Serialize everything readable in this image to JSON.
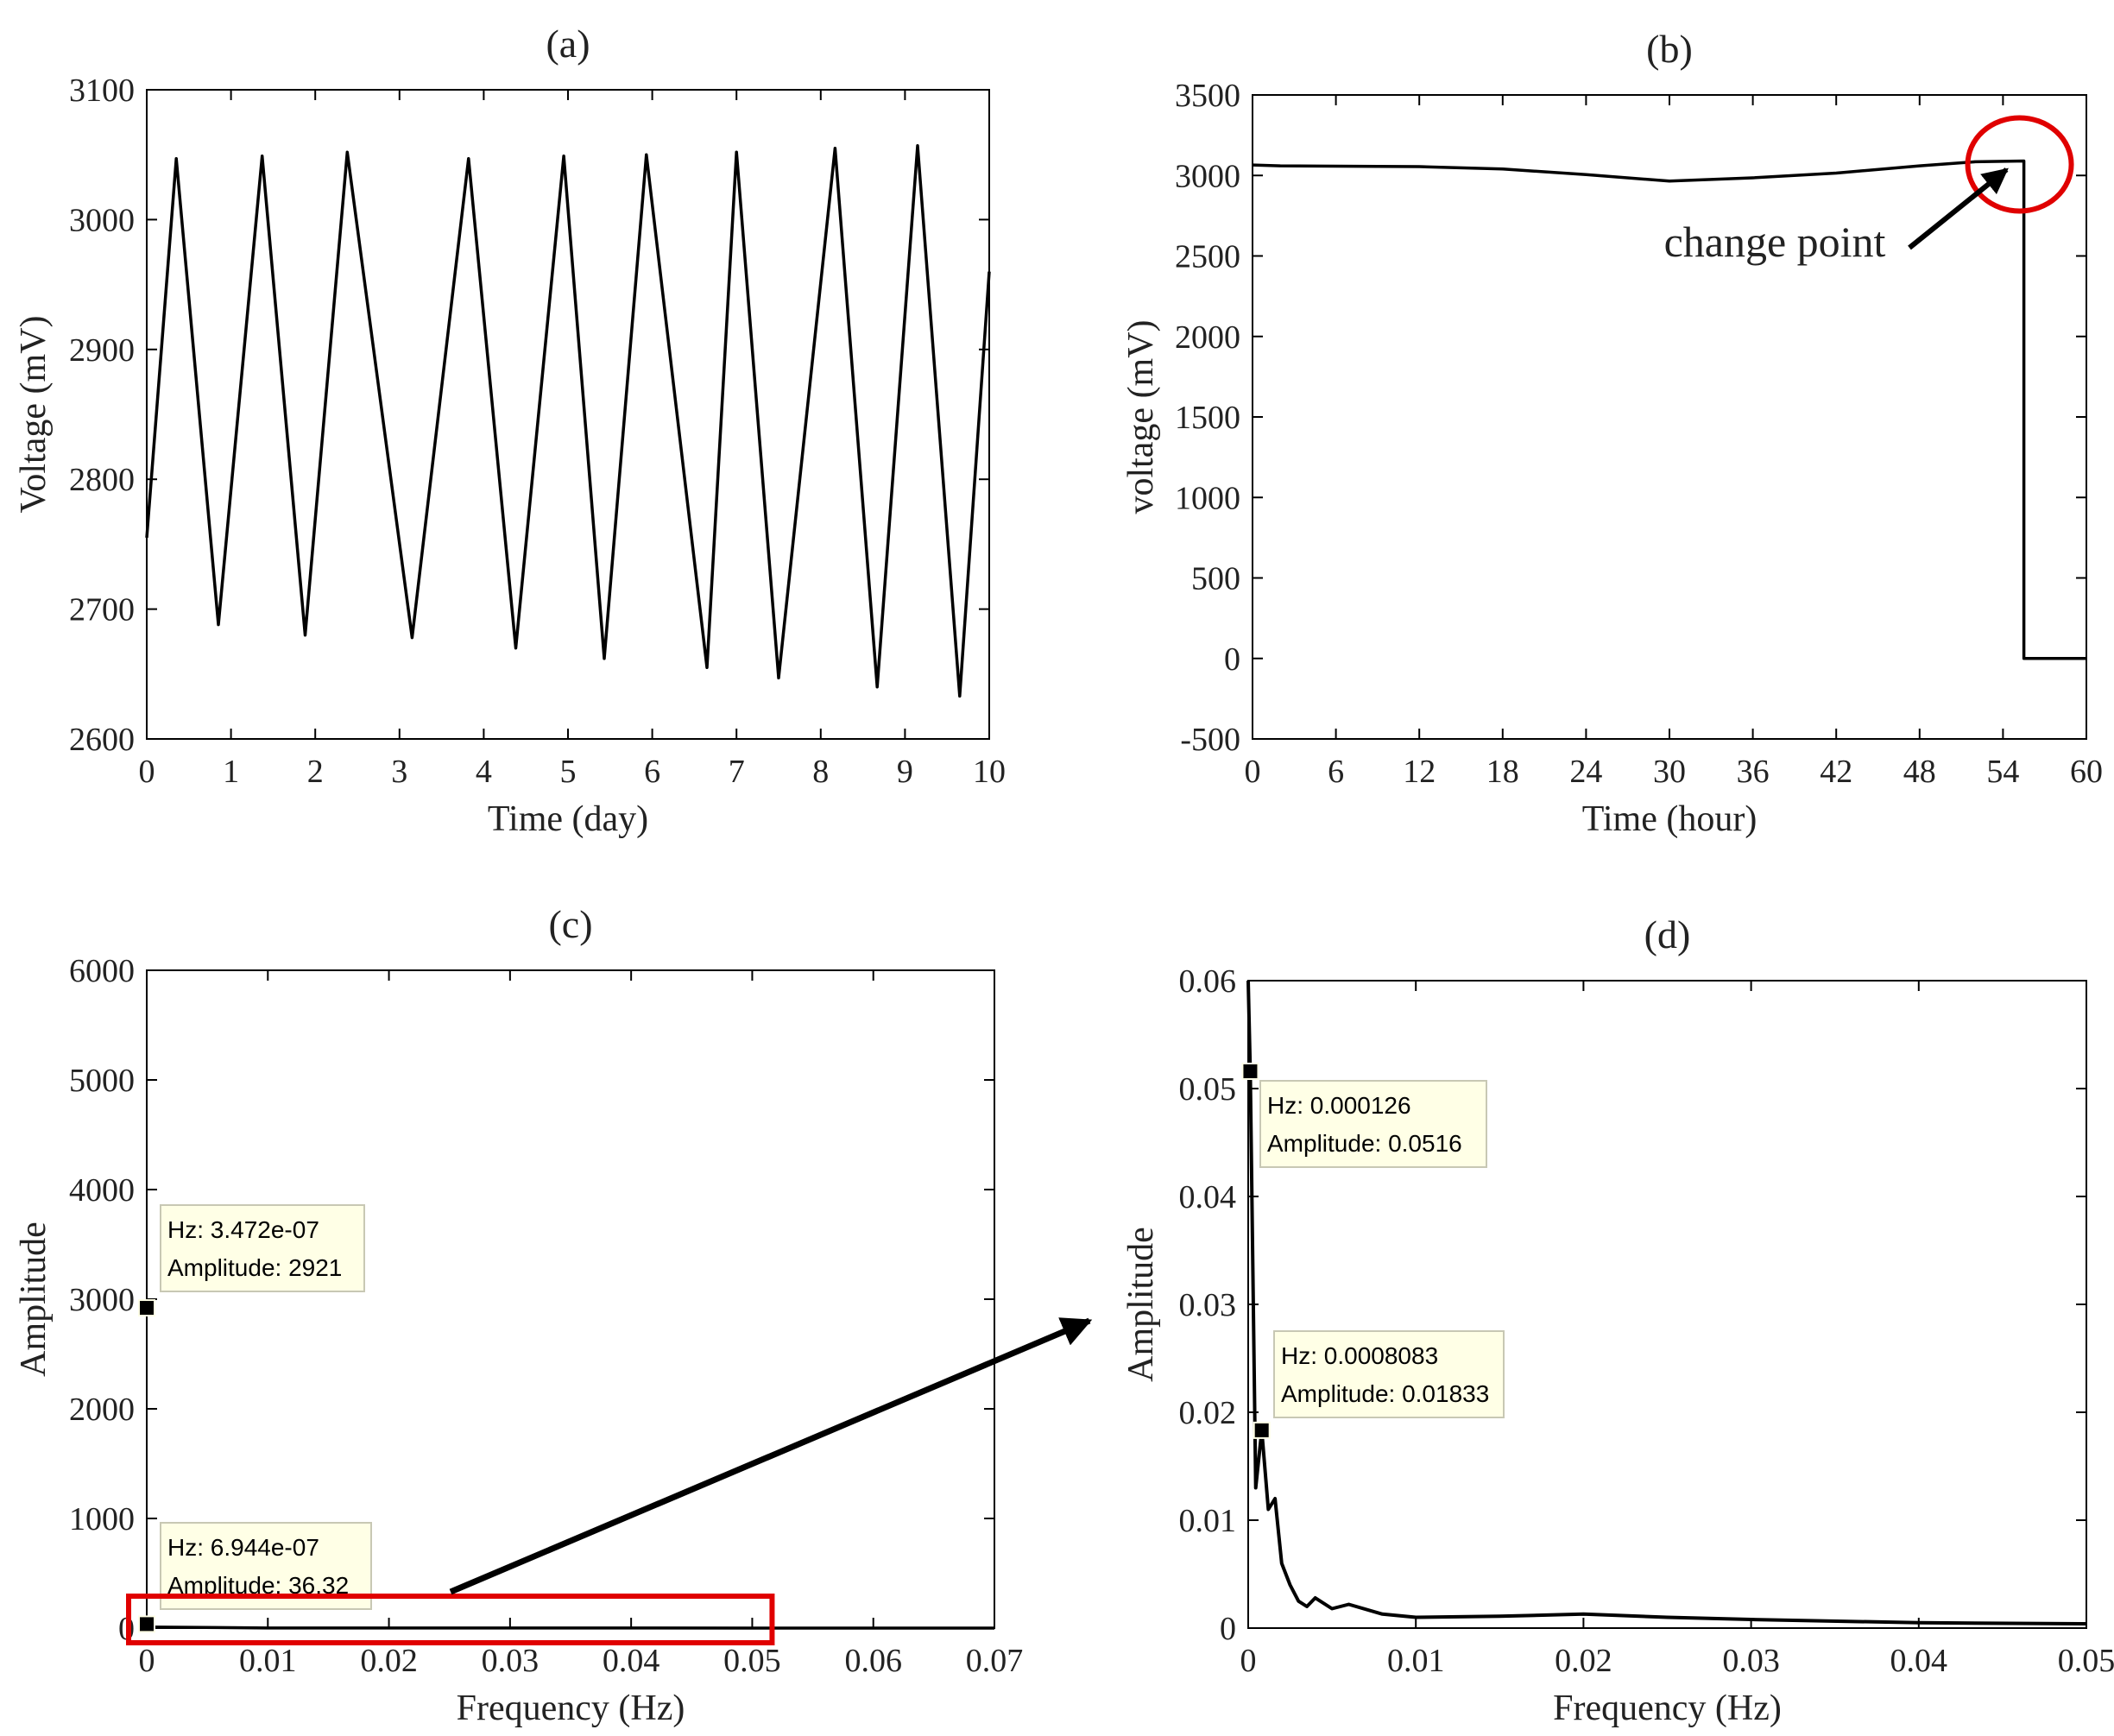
{
  "chart_data": [
    {
      "id": "a",
      "type": "line",
      "title": "(a)",
      "xlabel": "Time (day)",
      "ylabel": "Voltage (mV)",
      "xlim": [
        0,
        10
      ],
      "ylim": [
        2600,
        3100
      ],
      "xticks": [
        0,
        1,
        2,
        3,
        4,
        5,
        6,
        7,
        8,
        9,
        10
      ],
      "yticks": [
        2600,
        2700,
        2800,
        2900,
        3000,
        3100
      ],
      "grid": false,
      "color": "#000000",
      "series": [
        {
          "name": "voltage",
          "x": [
            0,
            0.35,
            0.85,
            1.37,
            1.88,
            2.38,
            3.15,
            3.82,
            4.38,
            4.95,
            5.43,
            5.93,
            6.65,
            7.0,
            7.5,
            8.17,
            8.67,
            9.15,
            9.65,
            10
          ],
          "y": [
            2755,
            3047,
            2688,
            3049,
            2680,
            3052,
            2678,
            3047,
            2670,
            3049,
            2662,
            3050,
            2655,
            3052,
            2647,
            3055,
            2640,
            3057,
            2633,
            2960
          ]
        }
      ]
    },
    {
      "id": "b",
      "type": "line",
      "title": "(b)",
      "xlabel": "Time (hour)",
      "ylabel": "voltage (mV)",
      "xlim": [
        0,
        60
      ],
      "ylim": [
        -500,
        3500
      ],
      "xticks": [
        0,
        6,
        12,
        18,
        24,
        30,
        36,
        42,
        48,
        54,
        60
      ],
      "yticks": [
        -500,
        0,
        500,
        1000,
        1500,
        2000,
        2500,
        3000,
        3500
      ],
      "grid": false,
      "color": "#000000",
      "highlight_color": "#e00000",
      "series": [
        {
          "name": "voltage",
          "x": [
            0,
            2,
            12,
            18,
            24,
            30,
            36,
            42,
            48,
            52,
            55.5,
            55.5,
            60
          ],
          "y": [
            3065,
            3060,
            3055,
            3040,
            3005,
            2965,
            2985,
            3015,
            3060,
            3085,
            3090,
            0,
            0
          ]
        }
      ],
      "annotations": [
        {
          "text": "change point",
          "target": [
            55.5,
            3090
          ],
          "marker": "circle"
        }
      ]
    },
    {
      "id": "c",
      "type": "line",
      "title": "(c)",
      "xlabel": "Frequency (Hz)",
      "ylabel": "Amplitude",
      "xlim": [
        0,
        0.07
      ],
      "ylim": [
        0,
        6000
      ],
      "xticks": [
        "0",
        "0.01",
        "0.02",
        "0.03",
        "0.04",
        "0.05",
        "0.06",
        "0.07"
      ],
      "yticks": [
        "0",
        "1000",
        "2000",
        "3000",
        "4000",
        "5000",
        "6000"
      ],
      "grid": false,
      "color": "#000000",
      "highlight_color": "#e00000",
      "series": [
        {
          "name": "spectrum",
          "x": [
            0,
            0.01,
            0.02,
            0.03,
            0.04,
            0.05,
            0.06,
            0.07
          ],
          "y": [
            10,
            1,
            1,
            0.5,
            0.5,
            0.3,
            0.2,
            0.2
          ]
        }
      ],
      "datatips": [
        {
          "x": 3.472e-07,
          "y": 2921,
          "line1": "Hz: 3.472e-07",
          "line2": "Amplitude: 2921"
        },
        {
          "x": 6.944e-07,
          "y": 36.32,
          "line1": "Hz: 6.944e-07",
          "line2": "Amplitude: 36.32"
        }
      ],
      "zoom_region": {
        "x": [
          0,
          0.05
        ],
        "y": [
          0,
          0.06
        ]
      }
    },
    {
      "id": "d",
      "type": "line",
      "title": "(d)",
      "xlabel": "Frequency (Hz)",
      "ylabel": "Amplitude",
      "xlim": [
        0,
        0.05
      ],
      "ylim": [
        0,
        0.06
      ],
      "xticks": [
        "0",
        "0.01",
        "0.02",
        "0.03",
        "0.04",
        "0.05"
      ],
      "yticks": [
        "0",
        "0.01",
        "0.02",
        "0.03",
        "0.04",
        "0.05",
        "0.06"
      ],
      "grid": false,
      "color": "#000000",
      "series": [
        {
          "name": "spectrum",
          "x": [
            0,
            0.000126,
            0.00045,
            0.0008083,
            0.0012,
            0.0016,
            0.002,
            0.0025,
            0.003,
            0.0035,
            0.004,
            0.005,
            0.006,
            0.008,
            0.01,
            0.015,
            0.02,
            0.025,
            0.03,
            0.04,
            0.05
          ],
          "y": [
            0.06,
            0.0516,
            0.013,
            0.01833,
            0.011,
            0.012,
            0.006,
            0.004,
            0.0025,
            0.002,
            0.0028,
            0.0018,
            0.0022,
            0.0013,
            0.001,
            0.0011,
            0.0013,
            0.001,
            0.0008,
            0.0005,
            0.0004
          ]
        }
      ],
      "datatips": [
        {
          "x": 0.000126,
          "y": 0.0516,
          "line1": "Hz: 0.000126",
          "line2": "Amplitude: 0.0516"
        },
        {
          "x": 0.0008083,
          "y": 0.01833,
          "line1": "Hz: 0.0008083",
          "line2": "Amplitude: 0.01833"
        }
      ]
    }
  ]
}
